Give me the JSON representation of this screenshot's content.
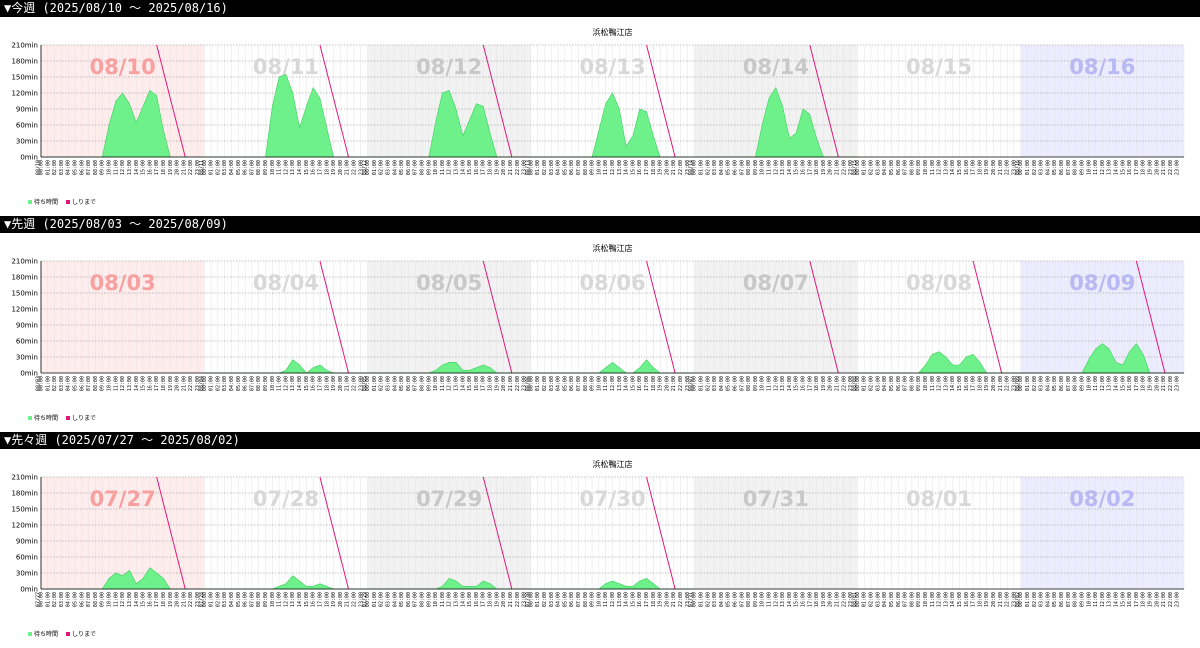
{
  "colors": {
    "wait_fill": "#6ef08a",
    "wait_stroke": "#3ecf5f",
    "until_line": "#e0187a",
    "sun_bg": "#ffecec",
    "sat_bg": "#ececff",
    "alt_bg": "#f2f2f2",
    "sun_label": "#f8a0a0",
    "sat_label": "#b8b8f4",
    "weekday_label": "#d8d8d8",
    "alt_label": "#c8c8c8"
  },
  "weeks": [
    {
      "header": "▼今週 (2025/08/10 ～ 2025/08/16)",
      "chart_data": {
        "type": "area",
        "title": "浜松鴨江店",
        "y_unit": "min",
        "ylim": [
          0,
          210
        ],
        "yticks": [
          "0min",
          "30min",
          "60min",
          "90min",
          "120min",
          "150min",
          "180min",
          "210min"
        ],
        "days": [
          {
            "date": "08/10",
            "weekday": "sun",
            "waits": [
              0,
              0,
              0,
              0,
              0,
              0,
              0,
              0,
              0,
              0,
              60,
              105,
              120,
              100,
              65,
              95,
              125,
              115,
              50,
              0,
              0,
              0,
              0,
              0
            ],
            "until_hours": [
              17,
              21.2
            ]
          },
          {
            "date": "08/11",
            "weekday": "mon",
            "waits": [
              0,
              0,
              0,
              0,
              0,
              0,
              0,
              0,
              0,
              0,
              95,
              150,
              155,
              120,
              55,
              95,
              130,
              110,
              55,
              0,
              0,
              0,
              0,
              0
            ],
            "until_hours": [
              17,
              21.2
            ]
          },
          {
            "date": "08/12",
            "weekday": "tue",
            "waits": [
              0,
              0,
              0,
              0,
              0,
              0,
              0,
              0,
              0,
              0,
              65,
              120,
              125,
              90,
              40,
              70,
              100,
              95,
              45,
              0,
              0,
              0,
              0,
              0
            ],
            "until_hours": [
              17,
              21.2
            ]
          },
          {
            "date": "08/13",
            "weekday": "wed",
            "waits": [
              0,
              0,
              0,
              0,
              0,
              0,
              0,
              0,
              0,
              0,
              50,
              100,
              120,
              90,
              20,
              40,
              90,
              85,
              40,
              0,
              0,
              0,
              0,
              0
            ],
            "until_hours": [
              17,
              21.2
            ]
          },
          {
            "date": "08/14",
            "weekday": "thu",
            "waits": [
              0,
              0,
              0,
              0,
              0,
              0,
              0,
              0,
              0,
              0,
              60,
              110,
              130,
              95,
              35,
              45,
              90,
              80,
              35,
              0,
              0,
              0,
              0,
              0
            ],
            "until_hours": [
              17,
              21.2
            ]
          },
          {
            "date": "08/15",
            "weekday": "fri",
            "waits": [
              0,
              0,
              0,
              0,
              0,
              0,
              0,
              0,
              0,
              0,
              0,
              0,
              0,
              0,
              0,
              0,
              0,
              0,
              0,
              0,
              0,
              0,
              0,
              0
            ],
            "until_hours": null
          },
          {
            "date": "08/16",
            "weekday": "sat",
            "waits": [
              0,
              0,
              0,
              0,
              0,
              0,
              0,
              0,
              0,
              0,
              0,
              0,
              0,
              0,
              0,
              0,
              0,
              0,
              0,
              0,
              0,
              0,
              0,
              0
            ],
            "until_hours": null
          }
        ],
        "legend": [
          {
            "label": "待ち時間",
            "color": "#6ef08a"
          },
          {
            "label": "しりまで",
            "color": "#e0187a"
          }
        ]
      }
    },
    {
      "header": "▼先週 (2025/08/03 ～ 2025/08/09)",
      "chart_data": {
        "type": "area",
        "title": "浜松鴨江店",
        "y_unit": "min",
        "ylim": [
          0,
          210
        ],
        "yticks": [
          "0min",
          "30min",
          "60min",
          "90min",
          "120min",
          "150min",
          "180min",
          "210min"
        ],
        "days": [
          {
            "date": "08/03",
            "weekday": "sun",
            "waits": [
              0,
              0,
              0,
              0,
              0,
              0,
              0,
              0,
              0,
              0,
              0,
              0,
              0,
              0,
              0,
              0,
              0,
              0,
              0,
              0,
              0,
              0,
              0,
              0
            ],
            "until_hours": null
          },
          {
            "date": "08/04",
            "weekday": "mon",
            "waits": [
              0,
              0,
              0,
              0,
              0,
              0,
              0,
              0,
              0,
              0,
              0,
              0,
              5,
              25,
              15,
              0,
              10,
              15,
              5,
              0,
              0,
              0,
              0,
              0
            ],
            "until_hours": [
              17,
              21.2
            ]
          },
          {
            "date": "08/05",
            "weekday": "tue",
            "waits": [
              0,
              0,
              0,
              0,
              0,
              0,
              0,
              0,
              0,
              0,
              5,
              15,
              20,
              20,
              5,
              5,
              10,
              15,
              10,
              0,
              0,
              0,
              0,
              0
            ],
            "until_hours": [
              17,
              21.2
            ]
          },
          {
            "date": "08/06",
            "weekday": "wed",
            "waits": [
              0,
              0,
              0,
              0,
              0,
              0,
              0,
              0,
              0,
              0,
              0,
              10,
              20,
              10,
              0,
              0,
              10,
              25,
              10,
              0,
              0,
              0,
              0,
              0
            ],
            "until_hours": [
              17,
              21.2
            ]
          },
          {
            "date": "08/07",
            "weekday": "thu",
            "waits": [
              0,
              0,
              0,
              0,
              0,
              0,
              0,
              0,
              0,
              0,
              0,
              0,
              0,
              0,
              0,
              0,
              0,
              0,
              0,
              0,
              0,
              0,
              0,
              0
            ],
            "until_hours": [
              17,
              21.2
            ]
          },
          {
            "date": "08/08",
            "weekday": "fri",
            "waits": [
              0,
              0,
              0,
              0,
              0,
              0,
              0,
              0,
              0,
              0,
              15,
              35,
              40,
              30,
              15,
              15,
              30,
              35,
              20,
              0,
              0,
              0,
              0,
              0
            ],
            "until_hours": [
              17,
              21.2
            ]
          },
          {
            "date": "08/09",
            "weekday": "sat",
            "waits": [
              0,
              0,
              0,
              0,
              0,
              0,
              0,
              0,
              0,
              0,
              25,
              45,
              55,
              45,
              20,
              15,
              40,
              55,
              35,
              0,
              0,
              0,
              0,
              0
            ],
            "until_hours": [
              17,
              21.2
            ]
          }
        ],
        "legend": [
          {
            "label": "待ち時間",
            "color": "#6ef08a"
          },
          {
            "label": "しりまで",
            "color": "#e0187a"
          }
        ]
      }
    },
    {
      "header": "▼先々週 (2025/07/27 ～ 2025/08/02)",
      "chart_data": {
        "type": "area",
        "title": "浜松鴨江店",
        "y_unit": "min",
        "ylim": [
          0,
          210
        ],
        "yticks": [
          "0min",
          "30min",
          "60min",
          "90min",
          "120min",
          "150min",
          "180min",
          "210min"
        ],
        "days": [
          {
            "date": "07/27",
            "weekday": "sun",
            "waits": [
              0,
              0,
              0,
              0,
              0,
              0,
              0,
              0,
              0,
              0,
              20,
              30,
              25,
              35,
              10,
              20,
              40,
              30,
              20,
              0,
              0,
              0,
              0,
              0
            ],
            "until_hours": [
              17,
              21.2
            ]
          },
          {
            "date": "07/28",
            "weekday": "mon",
            "waits": [
              0,
              0,
              0,
              0,
              0,
              0,
              0,
              0,
              0,
              0,
              0,
              5,
              10,
              25,
              15,
              5,
              5,
              10,
              5,
              0,
              0,
              0,
              0,
              0
            ],
            "until_hours": [
              17,
              21.2
            ]
          },
          {
            "date": "07/29",
            "weekday": "tue",
            "waits": [
              0,
              0,
              0,
              0,
              0,
              0,
              0,
              0,
              0,
              0,
              0,
              5,
              20,
              15,
              5,
              5,
              5,
              15,
              10,
              0,
              0,
              0,
              0,
              0
            ],
            "until_hours": [
              17,
              21.2
            ]
          },
          {
            "date": "07/30",
            "weekday": "wed",
            "waits": [
              0,
              0,
              0,
              0,
              0,
              0,
              0,
              0,
              0,
              0,
              0,
              10,
              15,
              10,
              5,
              5,
              15,
              20,
              10,
              0,
              0,
              0,
              0,
              0
            ],
            "until_hours": [
              17,
              21.2
            ]
          },
          {
            "date": "07/31",
            "weekday": "thu",
            "waits": [
              0,
              0,
              0,
              0,
              0,
              0,
              0,
              0,
              0,
              0,
              0,
              0,
              0,
              0,
              0,
              0,
              0,
              0,
              0,
              0,
              0,
              0,
              0,
              0
            ],
            "until_hours": null
          },
          {
            "date": "08/01",
            "weekday": "fri",
            "waits": [
              0,
              0,
              0,
              0,
              0,
              0,
              0,
              0,
              0,
              0,
              0,
              0,
              0,
              0,
              0,
              0,
              0,
              0,
              0,
              0,
              0,
              0,
              0,
              0
            ],
            "until_hours": null
          },
          {
            "date": "08/02",
            "weekday": "sat",
            "waits": [
              0,
              0,
              0,
              0,
              0,
              0,
              0,
              0,
              0,
              0,
              0,
              0,
              0,
              0,
              0,
              0,
              0,
              0,
              0,
              0,
              0,
              0,
              0,
              0
            ],
            "until_hours": null
          }
        ],
        "legend": [
          {
            "label": "待ち時間",
            "color": "#6ef08a"
          },
          {
            "label": "しりまで",
            "color": "#e0187a"
          }
        ]
      }
    }
  ]
}
